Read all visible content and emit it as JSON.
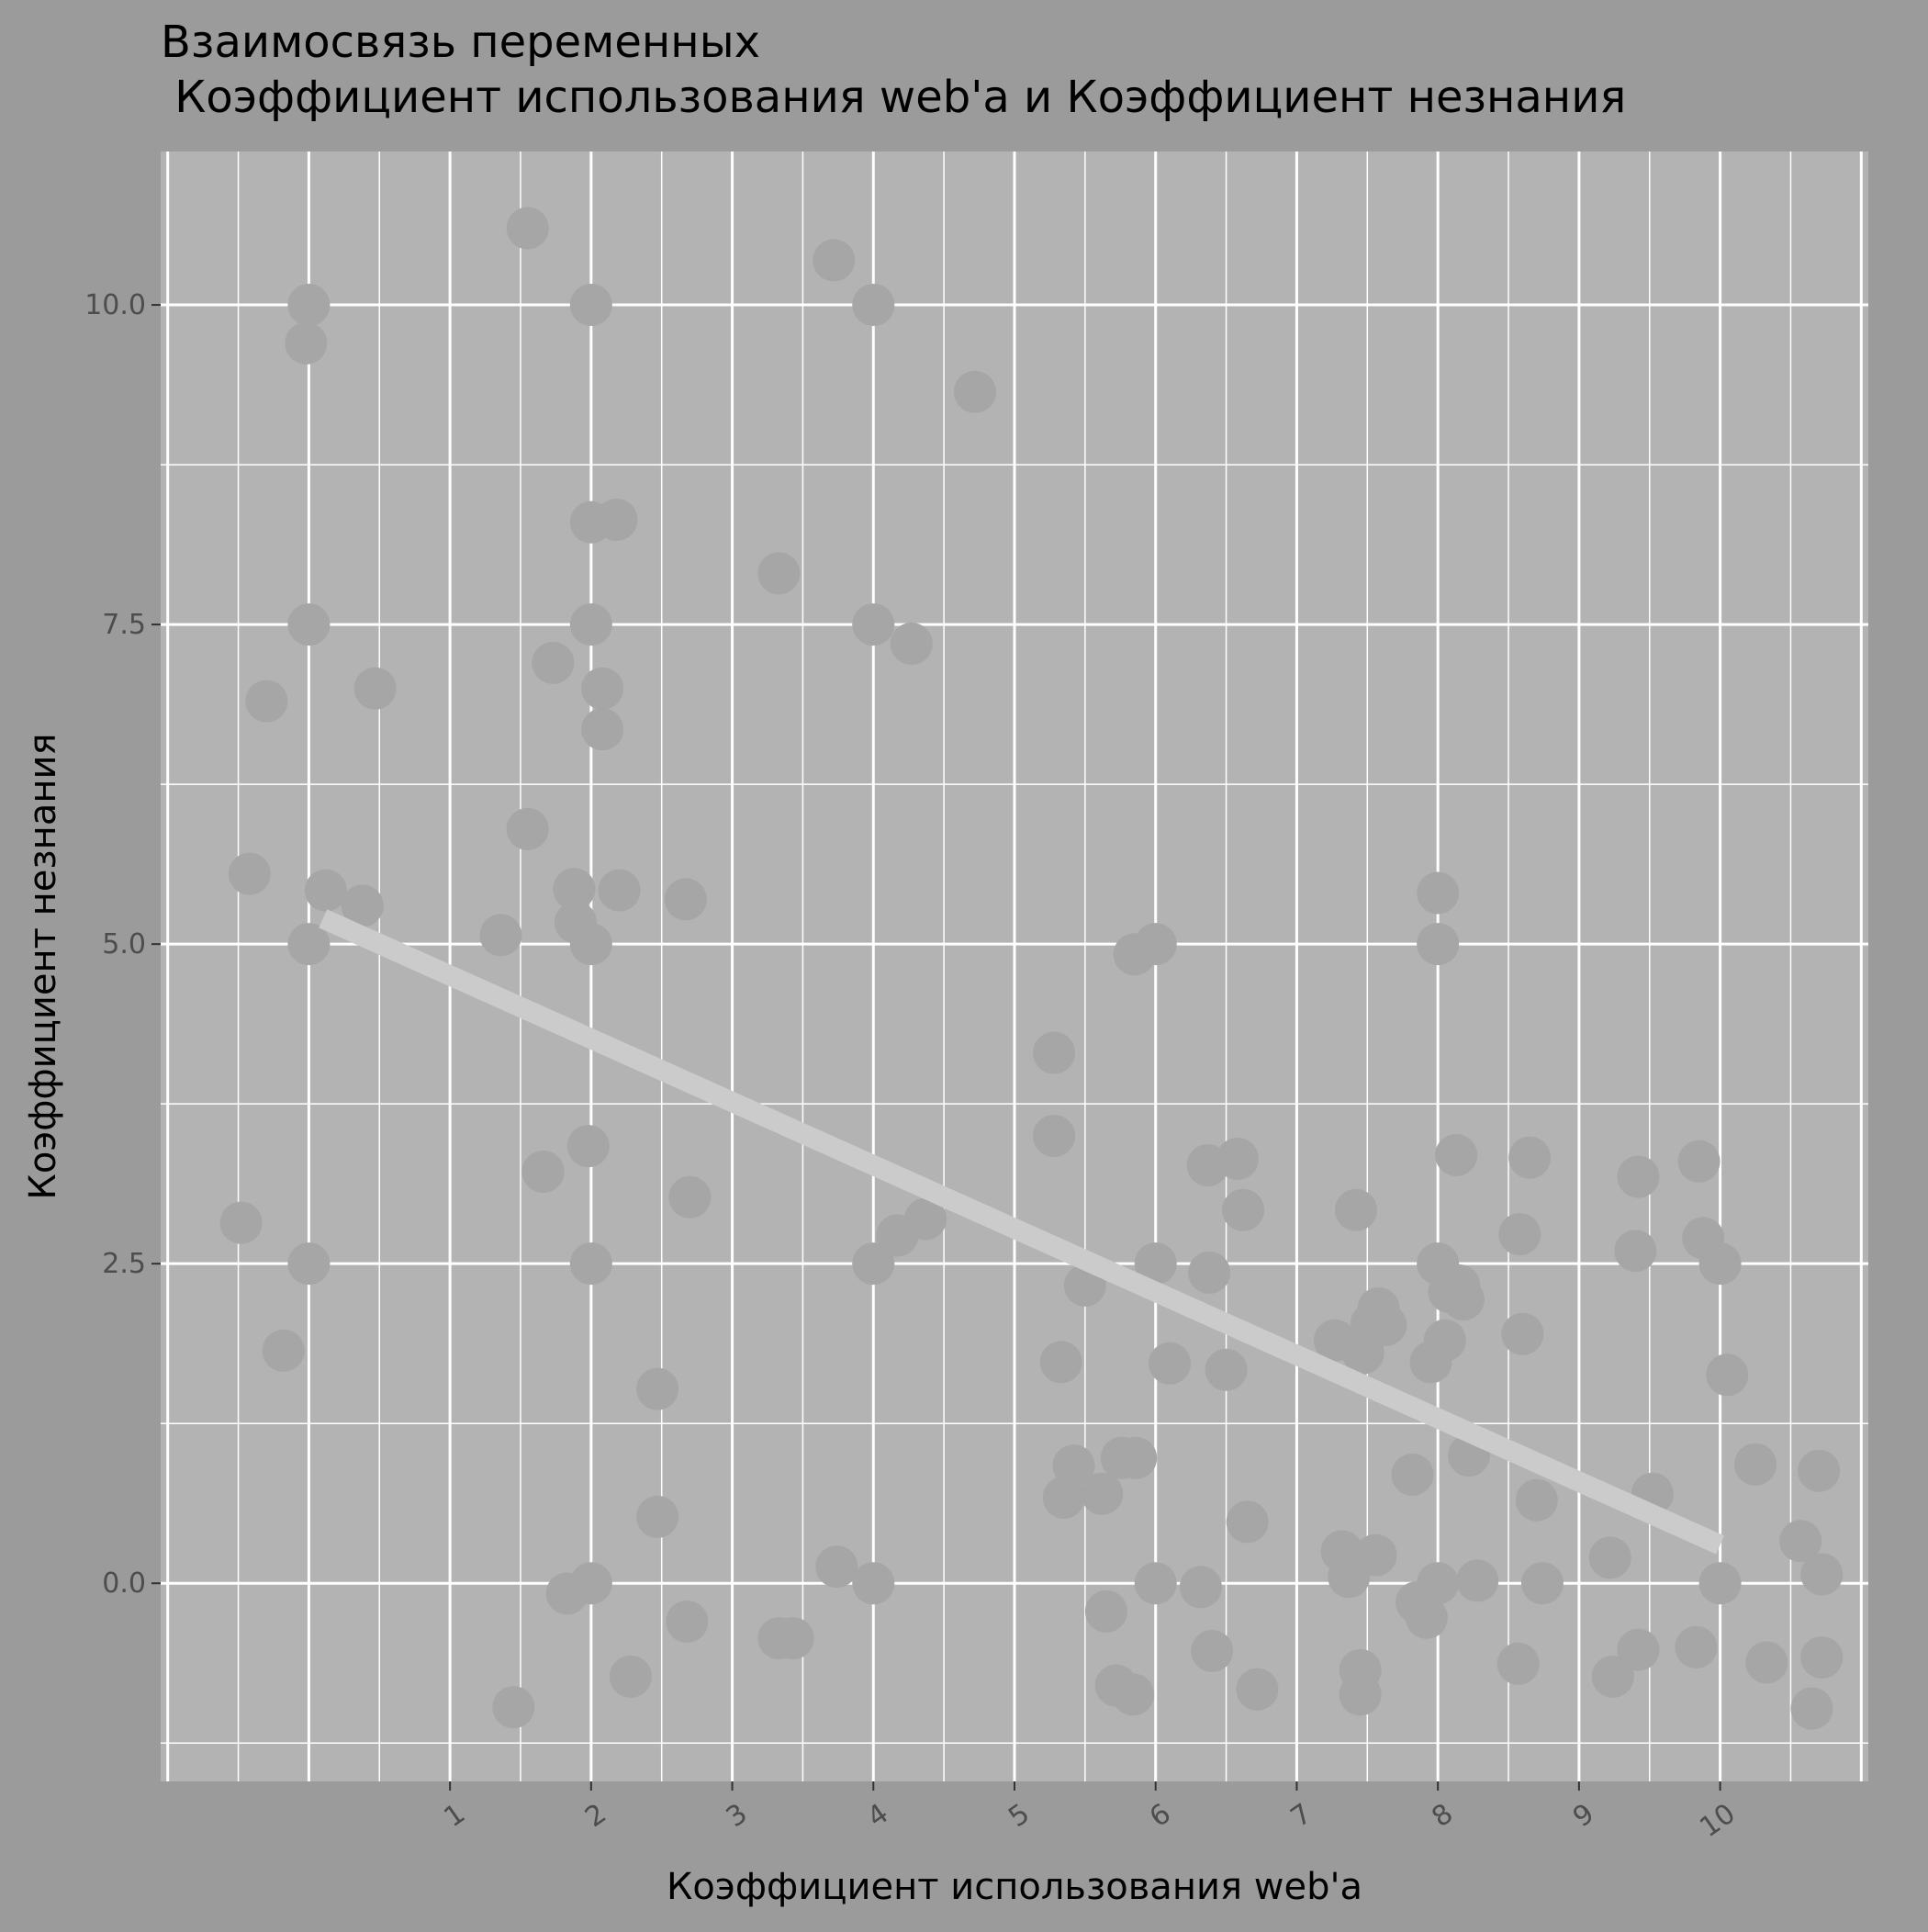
{
  "chart_data": {
    "type": "scatter",
    "title": [
      "Взаимосвязь переменных",
      " Коэффициент использования web'a и Коэффициент незнания"
    ],
    "xlabel": "Коэффициент использования web'a",
    "ylabel": "Коэффициент незнания",
    "xlim": [
      -1.05,
      11.05
    ],
    "ylim": [
      -1.55,
      11.2
    ],
    "x_ticks": [
      1,
      2,
      3,
      4,
      5,
      6,
      7,
      8,
      9,
      10
    ],
    "y_ticks": [
      "0.0",
      "2.5",
      "5.0",
      "7.5",
      "10.0"
    ],
    "y_tick_values": [
      0,
      2.5,
      5,
      7.5,
      10
    ],
    "grid": true,
    "points": [
      {
        "x": -0.48,
        "y": 2.82
      },
      {
        "x": -0.42,
        "y": 5.55
      },
      {
        "x": -0.3,
        "y": 6.9
      },
      {
        "x": -0.18,
        "y": 1.82
      },
      {
        "x": -0.02,
        "y": 9.7
      },
      {
        "x": 0.0,
        "y": 10.0
      },
      {
        "x": 0.0,
        "y": 7.5
      },
      {
        "x": 0.0,
        "y": 5.0
      },
      {
        "x": 0.0,
        "y": 2.5
      },
      {
        "x": 0.12,
        "y": 5.42
      },
      {
        "x": 0.38,
        "y": 5.3
      },
      {
        "x": 0.47,
        "y": 7.0
      },
      {
        "x": 1.36,
        "y": 5.07
      },
      {
        "x": 1.45,
        "y": -0.97
      },
      {
        "x": 1.55,
        "y": 5.9
      },
      {
        "x": 1.55,
        "y": 10.6
      },
      {
        "x": 1.66,
        "y": 3.22
      },
      {
        "x": 1.73,
        "y": 7.2
      },
      {
        "x": 1.83,
        "y": -0.08
      },
      {
        "x": 1.88,
        "y": 5.43
      },
      {
        "x": 1.89,
        "y": 5.17
      },
      {
        "x": 1.98,
        "y": 3.42
      },
      {
        "x": 2.0,
        "y": 10.0
      },
      {
        "x": 2.0,
        "y": 8.3
      },
      {
        "x": 2.0,
        "y": 7.5
      },
      {
        "x": 2.0,
        "y": 5.0
      },
      {
        "x": 2.0,
        "y": 2.5
      },
      {
        "x": 2.0,
        "y": 0.0
      },
      {
        "x": 2.08,
        "y": 7.0
      },
      {
        "x": 2.08,
        "y": 6.68
      },
      {
        "x": 2.18,
        "y": 8.32
      },
      {
        "x": 2.2,
        "y": 5.42
      },
      {
        "x": 2.28,
        "y": -0.73
      },
      {
        "x": 2.47,
        "y": 1.52
      },
      {
        "x": 2.47,
        "y": 0.52
      },
      {
        "x": 2.67,
        "y": 5.35
      },
      {
        "x": 2.68,
        "y": -0.3
      },
      {
        "x": 2.7,
        "y": 3.02
      },
      {
        "x": 3.33,
        "y": 7.9
      },
      {
        "x": 3.33,
        "y": -0.43
      },
      {
        "x": 3.43,
        "y": -0.43
      },
      {
        "x": 3.72,
        "y": 10.35
      },
      {
        "x": 3.74,
        "y": 0.13
      },
      {
        "x": 4.0,
        "y": 10.0
      },
      {
        "x": 4.0,
        "y": 7.5
      },
      {
        "x": 4.0,
        "y": 2.5
      },
      {
        "x": 4.0,
        "y": 0.0
      },
      {
        "x": 4.17,
        "y": 2.72
      },
      {
        "x": 4.27,
        "y": 7.35
      },
      {
        "x": 4.37,
        "y": 2.85
      },
      {
        "x": 4.72,
        "y": 9.32
      },
      {
        "x": 5.28,
        "y": 4.15
      },
      {
        "x": 5.28,
        "y": 3.5
      },
      {
        "x": 5.33,
        "y": 1.73
      },
      {
        "x": 5.35,
        "y": 0.67
      },
      {
        "x": 5.42,
        "y": 0.92
      },
      {
        "x": 5.5,
        "y": 2.33
      },
      {
        "x": 5.62,
        "y": 0.7
      },
      {
        "x": 5.65,
        "y": -0.22
      },
      {
        "x": 5.72,
        "y": -0.8
      },
      {
        "x": 5.76,
        "y": 0.98
      },
      {
        "x": 5.84,
        "y": -0.87
      },
      {
        "x": 5.85,
        "y": 4.92
      },
      {
        "x": 5.86,
        "y": 0.98
      },
      {
        "x": 6.0,
        "y": 5.0
      },
      {
        "x": 6.0,
        "y": 2.5
      },
      {
        "x": 6.0,
        "y": 0.0
      },
      {
        "x": 6.1,
        "y": 1.72
      },
      {
        "x": 6.32,
        "y": -0.03
      },
      {
        "x": 6.37,
        "y": 3.27
      },
      {
        "x": 6.38,
        "y": 2.43
      },
      {
        "x": 6.4,
        "y": -0.53
      },
      {
        "x": 6.5,
        "y": 1.67
      },
      {
        "x": 6.58,
        "y": 3.32
      },
      {
        "x": 6.62,
        "y": 2.92
      },
      {
        "x": 6.65,
        "y": 0.48
      },
      {
        "x": 6.72,
        "y": -0.83
      },
      {
        "x": 7.27,
        "y": 1.9
      },
      {
        "x": 7.32,
        "y": 0.25
      },
      {
        "x": 7.37,
        "y": 0.05
      },
      {
        "x": 7.42,
        "y": 2.92
      },
      {
        "x": 7.45,
        "y": -0.68
      },
      {
        "x": 7.45,
        "y": -0.87
      },
      {
        "x": 7.47,
        "y": 1.8
      },
      {
        "x": 7.53,
        "y": 2.03
      },
      {
        "x": 7.56,
        "y": 0.22
      },
      {
        "x": 7.58,
        "y": 2.15
      },
      {
        "x": 7.63,
        "y": 2.02
      },
      {
        "x": 7.82,
        "y": 0.85
      },
      {
        "x": 7.85,
        "y": -0.15
      },
      {
        "x": 7.92,
        "y": -0.27
      },
      {
        "x": 7.95,
        "y": 1.73
      },
      {
        "x": 8.0,
        "y": 5.4
      },
      {
        "x": 8.0,
        "y": 5.0
      },
      {
        "x": 8.0,
        "y": 2.5
      },
      {
        "x": 8.0,
        "y": 0.0
      },
      {
        "x": 8.05,
        "y": 1.9
      },
      {
        "x": 8.08,
        "y": 2.28
      },
      {
        "x": 8.13,
        "y": 3.35
      },
      {
        "x": 8.15,
        "y": 2.33
      },
      {
        "x": 8.18,
        "y": 2.22
      },
      {
        "x": 8.22,
        "y": 1.0
      },
      {
        "x": 8.28,
        "y": 0.02
      },
      {
        "x": 8.57,
        "y": -0.63
      },
      {
        "x": 8.58,
        "y": 2.73
      },
      {
        "x": 8.6,
        "y": 1.95
      },
      {
        "x": 8.65,
        "y": 3.33
      },
      {
        "x": 8.7,
        "y": 0.65
      },
      {
        "x": 8.74,
        "y": 0.0
      },
      {
        "x": 9.22,
        "y": 0.2
      },
      {
        "x": 9.24,
        "y": -0.73
      },
      {
        "x": 9.4,
        "y": 2.6
      },
      {
        "x": 9.42,
        "y": -0.52
      },
      {
        "x": 9.42,
        "y": 3.18
      },
      {
        "x": 9.52,
        "y": 0.7
      },
      {
        "x": 9.83,
        "y": -0.5
      },
      {
        "x": 9.85,
        "y": 3.3
      },
      {
        "x": 9.88,
        "y": 2.7
      },
      {
        "x": 10.0,
        "y": 2.5
      },
      {
        "x": 10.0,
        "y": 0.0
      },
      {
        "x": 10.05,
        "y": 1.63
      },
      {
        "x": 10.25,
        "y": 0.93
      },
      {
        "x": 10.33,
        "y": -0.62
      },
      {
        "x": 10.57,
        "y": 0.33
      },
      {
        "x": 10.65,
        "y": -0.98
      },
      {
        "x": 10.7,
        "y": 0.88
      },
      {
        "x": 10.72,
        "y": 0.07
      },
      {
        "x": 10.72,
        "y": -0.58
      }
    ],
    "trend_line": {
      "x": [
        0.1,
        10.0
      ],
      "y": [
        5.2,
        0.3
      ]
    },
    "colors": {
      "background": "#9b9b9b",
      "panel": "#b3b3b3",
      "grid": "#ffffff",
      "point": "#a6a6a6",
      "trend": "#cbcbcb",
      "tick_text": "#4d4d4d"
    }
  }
}
